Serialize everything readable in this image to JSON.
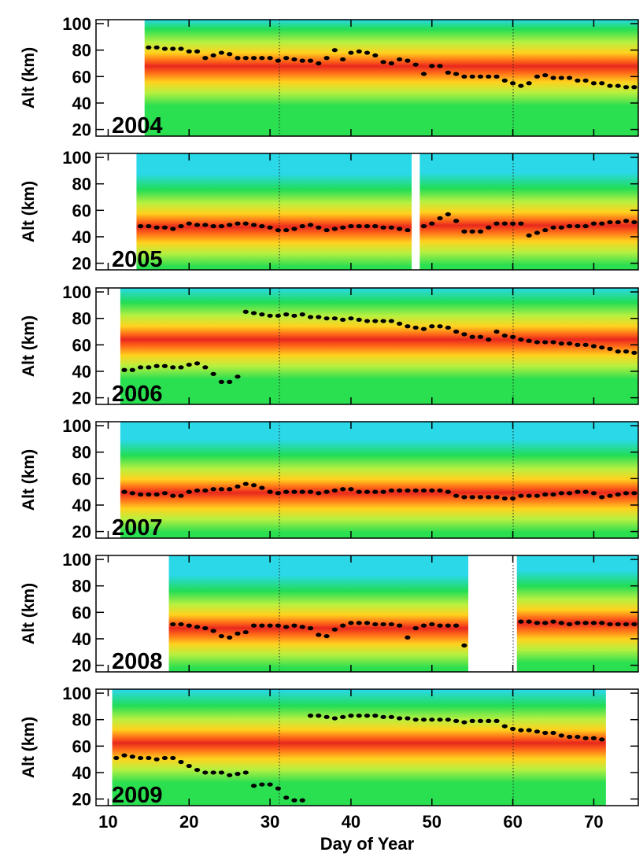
{
  "chart_data": [
    {
      "type": "scatter",
      "label": "2004",
      "ylabel": "Alt (km)",
      "color": "#000000",
      "xlim": [
        8.5,
        75.5
      ],
      "ylim": [
        15,
        103
      ],
      "yticks": [
        20,
        40,
        60,
        80,
        100
      ],
      "xticks": [
        10,
        20,
        30,
        40,
        50,
        60,
        70
      ],
      "x": [
        15,
        16,
        17,
        18,
        19,
        20,
        21,
        22,
        23,
        24,
        25,
        26,
        27,
        28,
        29,
        30,
        31,
        32,
        33,
        34,
        35,
        36,
        37,
        38,
        39,
        40,
        41,
        42,
        43,
        44,
        45,
        46,
        47,
        48,
        49,
        50,
        51,
        52,
        53,
        54,
        55,
        56,
        57,
        58,
        59,
        60,
        61,
        62,
        63,
        64,
        65,
        66,
        67,
        68,
        69,
        70,
        71,
        72,
        73,
        74,
        75
      ],
      "values": [
        82,
        82,
        81,
        81,
        81,
        79,
        79,
        74,
        76,
        78,
        77,
        74,
        74,
        74,
        74,
        74,
        72,
        74,
        73,
        72,
        72,
        70,
        74,
        80,
        73,
        78,
        79,
        78,
        76,
        71,
        70,
        73,
        72,
        69,
        62,
        68,
        68,
        63,
        62,
        60,
        60,
        60,
        60,
        60,
        57,
        55,
        53,
        55,
        60,
        61,
        59,
        59,
        59,
        57,
        57,
        55,
        55,
        53,
        53,
        52,
        52
      ]
    },
    {
      "type": "scatter",
      "label": "2005",
      "ylabel": "Alt (km)",
      "color": "#000000",
      "xlim": [
        8.5,
        75.5
      ],
      "ylim": [
        15,
        103
      ],
      "yticks": [
        20,
        40,
        60,
        80,
        100
      ],
      "xticks": [
        10,
        20,
        30,
        40,
        50,
        60,
        70
      ],
      "x": [
        14,
        15,
        16,
        17,
        18,
        19,
        20,
        21,
        22,
        23,
        24,
        25,
        26,
        27,
        28,
        29,
        30,
        31,
        32,
        33,
        34,
        35,
        36,
        37,
        38,
        39,
        40,
        41,
        42,
        43,
        44,
        45,
        46,
        47,
        48,
        49,
        50,
        51,
        52,
        53,
        54,
        55,
        56,
        57,
        58,
        59,
        60,
        61,
        62,
        63,
        64,
        65,
        66,
        67,
        68,
        69,
        70,
        71,
        72,
        73,
        74,
        75
      ],
      "values": [
        48,
        48,
        47,
        47,
        46,
        48,
        50,
        49,
        49,
        48,
        48,
        49,
        50,
        50,
        49,
        48,
        47,
        45,
        45,
        46,
        48,
        49,
        47,
        45,
        46,
        47,
        48,
        48,
        48,
        48,
        47,
        47,
        46,
        45,
        null,
        48,
        50,
        54,
        57,
        52,
        44,
        44,
        44,
        47,
        50,
        50,
        50,
        50,
        41,
        43,
        45,
        47,
        47,
        48,
        48,
        48,
        50,
        50,
        51,
        51,
        52,
        51
      ]
    },
    {
      "type": "scatter",
      "label": "2006",
      "ylabel": "Alt (km)",
      "color": "#000000",
      "xlim": [
        8.5,
        75.5
      ],
      "ylim": [
        15,
        103
      ],
      "yticks": [
        20,
        40,
        60,
        80,
        100
      ],
      "xticks": [
        10,
        20,
        30,
        40,
        50,
        60,
        70
      ],
      "x": [
        12,
        13,
        14,
        15,
        16,
        17,
        18,
        19,
        20,
        21,
        22,
        23,
        24,
        25,
        26,
        27,
        28,
        29,
        30,
        31,
        32,
        33,
        34,
        35,
        36,
        37,
        38,
        39,
        40,
        41,
        42,
        43,
        44,
        45,
        46,
        47,
        48,
        49,
        50,
        51,
        52,
        53,
        54,
        55,
        56,
        57,
        58,
        59,
        60,
        61,
        62,
        63,
        64,
        65,
        66,
        67,
        68,
        69,
        70,
        71,
        72,
        73,
        74,
        75
      ],
      "values": [
        41,
        41,
        43,
        43,
        44,
        44,
        43,
        43,
        45,
        46,
        43,
        38,
        32,
        32,
        36,
        85,
        84,
        83,
        82,
        82,
        83,
        82,
        83,
        81,
        81,
        80,
        80,
        79,
        80,
        79,
        78,
        78,
        78,
        78,
        76,
        74,
        73,
        72,
        74,
        74,
        73,
        70,
        68,
        66,
        66,
        64,
        70,
        67,
        66,
        64,
        63,
        62,
        62,
        62,
        61,
        61,
        60,
        60,
        59,
        58,
        57,
        55,
        55,
        54
      ]
    },
    {
      "type": "scatter",
      "label": "2007",
      "ylabel": "Alt (km)",
      "color": "#000000",
      "xlim": [
        8.5,
        75.5
      ],
      "ylim": [
        15,
        103
      ],
      "yticks": [
        20,
        40,
        60,
        80,
        100
      ],
      "xticks": [
        10,
        20,
        30,
        40,
        50,
        60,
        70
      ],
      "x": [
        12,
        13,
        14,
        15,
        16,
        17,
        18,
        19,
        20,
        21,
        22,
        23,
        24,
        25,
        26,
        27,
        28,
        29,
        30,
        31,
        32,
        33,
        34,
        35,
        36,
        37,
        38,
        39,
        40,
        41,
        42,
        43,
        44,
        45,
        46,
        47,
        48,
        49,
        50,
        51,
        52,
        53,
        54,
        55,
        56,
        57,
        58,
        59,
        60,
        61,
        62,
        63,
        64,
        65,
        66,
        67,
        68,
        69,
        70,
        71,
        72,
        73,
        74,
        75
      ],
      "values": [
        50,
        49,
        48,
        48,
        48,
        49,
        47,
        47,
        50,
        51,
        51,
        52,
        52,
        52,
        54,
        56,
        55,
        53,
        50,
        49,
        50,
        50,
        50,
        50,
        49,
        50,
        51,
        52,
        52,
        50,
        50,
        50,
        50,
        51,
        51,
        51,
        51,
        51,
        51,
        51,
        50,
        47,
        46,
        46,
        46,
        46,
        46,
        45,
        45,
        47,
        47,
        47,
        48,
        48,
        49,
        49,
        50,
        50,
        49,
        46,
        47,
        48,
        49,
        49
      ]
    },
    {
      "type": "scatter",
      "label": "2008",
      "ylabel": "Alt (km)",
      "color": "#000000",
      "xlim": [
        8.5,
        75.5
      ],
      "ylim": [
        15,
        103
      ],
      "yticks": [
        20,
        40,
        60,
        80,
        100
      ],
      "xticks": [
        10,
        20,
        30,
        40,
        50,
        60,
        70
      ],
      "x": [
        18,
        19,
        20,
        21,
        22,
        23,
        24,
        25,
        26,
        27,
        28,
        29,
        30,
        31,
        32,
        33,
        34,
        35,
        36,
        37,
        38,
        39,
        40,
        41,
        42,
        43,
        44,
        45,
        46,
        47,
        48,
        49,
        50,
        51,
        52,
        53,
        54,
        55,
        56,
        57,
        58,
        59,
        60,
        61,
        62,
        63,
        64,
        65,
        66,
        67,
        68,
        69,
        70,
        71,
        72,
        73,
        74,
        75
      ],
      "values": [
        51,
        51,
        50,
        49,
        48,
        46,
        42,
        41,
        44,
        45,
        50,
        50,
        50,
        50,
        49,
        50,
        49,
        48,
        43,
        42,
        47,
        50,
        52,
        52,
        52,
        51,
        51,
        51,
        50,
        41,
        48,
        50,
        51,
        50,
        50,
        50,
        35,
        null,
        null,
        null,
        null,
        null,
        null,
        53,
        53,
        52,
        52,
        53,
        52,
        51,
        52,
        52,
        52,
        52,
        51,
        51,
        51,
        51
      ]
    },
    {
      "type": "scatter",
      "label": "2009",
      "ylabel": "Alt (km)",
      "xlabel": "Day of Year",
      "color": "#000000",
      "xlim": [
        8.5,
        75.5
      ],
      "ylim": [
        15,
        103
      ],
      "yticks": [
        20,
        40,
        60,
        80,
        100
      ],
      "xticks": [
        10,
        20,
        30,
        40,
        50,
        60,
        70
      ],
      "x": [
        11,
        12,
        13,
        14,
        15,
        16,
        17,
        18,
        19,
        20,
        21,
        22,
        23,
        24,
        25,
        26,
        27,
        28,
        29,
        30,
        31,
        32,
        33,
        34,
        35,
        36,
        37,
        38,
        39,
        40,
        41,
        42,
        43,
        44,
        45,
        46,
        47,
        48,
        49,
        50,
        51,
        52,
        53,
        54,
        55,
        56,
        57,
        58,
        59,
        60,
        61,
        62,
        63,
        64,
        65,
        66,
        67,
        68,
        69,
        70,
        71
      ],
      "values": [
        51,
        53,
        52,
        51,
        51,
        50,
        51,
        51,
        48,
        45,
        42,
        40,
        40,
        40,
        38,
        39,
        40,
        30,
        31,
        31,
        28,
        21,
        19,
        19,
        83,
        83,
        82,
        81,
        82,
        83,
        83,
        83,
        83,
        82,
        82,
        81,
        81,
        80,
        80,
        80,
        80,
        80,
        79,
        78,
        79,
        79,
        79,
        79,
        75,
        73,
        72,
        72,
        71,
        70,
        70,
        68,
        67,
        67,
        66,
        66,
        65
      ]
    }
  ]
}
